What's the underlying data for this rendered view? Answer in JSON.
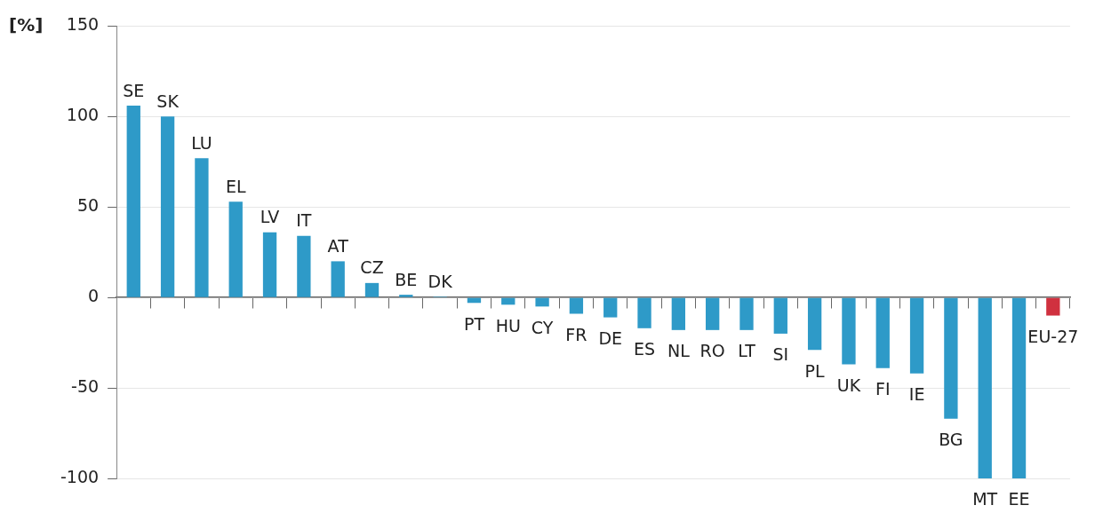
{
  "chart_data": {
    "type": "bar",
    "ylabel": "[%]",
    "categories": [
      "SE",
      "SK",
      "LU",
      "EL",
      "LV",
      "IT",
      "AT",
      "CZ",
      "BE",
      "DK",
      "PT",
      "HU",
      "CY",
      "FR",
      "DE",
      "ES",
      "NL",
      "RO",
      "LT",
      "SI",
      "PL",
      "UK",
      "FI",
      "IE",
      "BG",
      "MT",
      "EE",
      "EU-27"
    ],
    "values": [
      106,
      100,
      77,
      53,
      36,
      34,
      20,
      8,
      1.5,
      0.5,
      -3,
      -4,
      -5,
      -9,
      -11,
      -17,
      -18,
      -18,
      -18,
      -20,
      -29,
      -37,
      -39,
      -42,
      -67,
      -100,
      -100,
      -10
    ],
    "colors": [
      "#2e9ac8",
      "#2e9ac8",
      "#2e9ac8",
      "#2e9ac8",
      "#2e9ac8",
      "#2e9ac8",
      "#2e9ac8",
      "#2e9ac8",
      "#2e9ac8",
      "#2e9ac8",
      "#2e9ac8",
      "#2e9ac8",
      "#2e9ac8",
      "#2e9ac8",
      "#2e9ac8",
      "#2e9ac8",
      "#2e9ac8",
      "#2e9ac8",
      "#2e9ac8",
      "#2e9ac8",
      "#2e9ac8",
      "#2e9ac8",
      "#2e9ac8",
      "#2e9ac8",
      "#2e9ac8",
      "#2e9ac8",
      "#2e9ac8",
      "#d0313f"
    ],
    "ylim": [
      -100,
      150
    ],
    "yticks": [
      -100,
      -50,
      0,
      50,
      100,
      150
    ],
    "grid": "y",
    "tick_labels": "y",
    "legend": false
  }
}
